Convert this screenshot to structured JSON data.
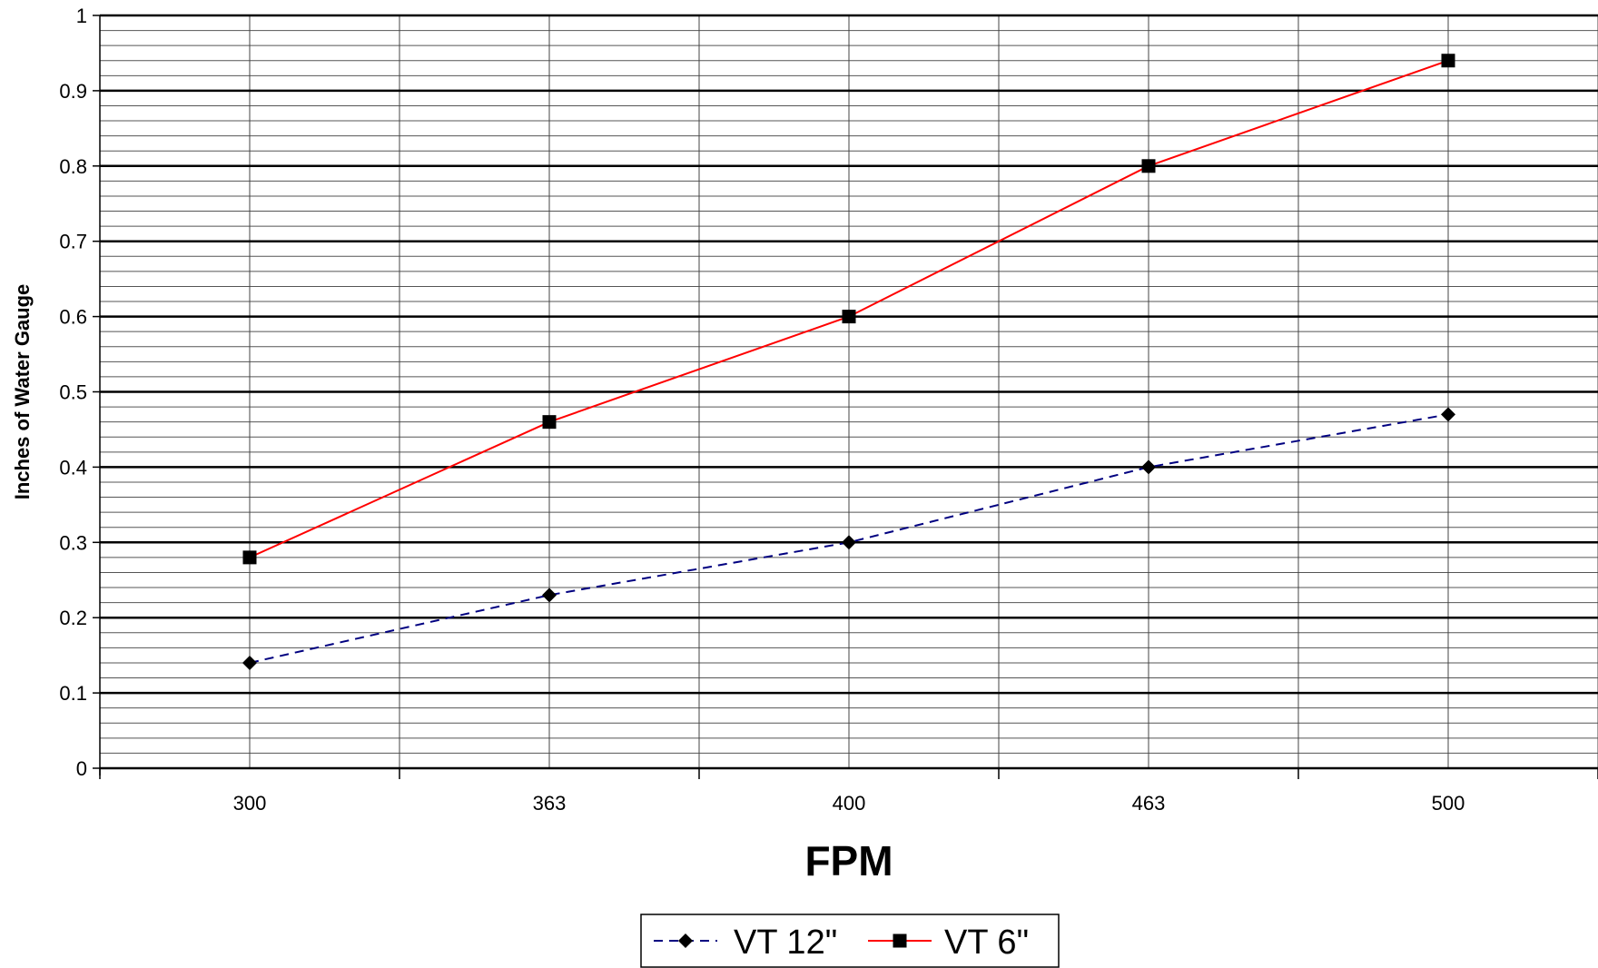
{
  "chart_data": {
    "type": "line",
    "title": "",
    "xlabel": "FPM",
    "ylabel": "Inches of Water Gauge",
    "categories": [
      "300",
      "363",
      "400",
      "463",
      "500"
    ],
    "ylim": [
      0,
      1
    ],
    "y_major_step": 0.1,
    "y_minor_step": 0.02,
    "yticks": [
      "0",
      "0.1",
      "0.2",
      "0.3",
      "0.4",
      "0.5",
      "0.6",
      "0.7",
      "0.8",
      "0.9",
      "1"
    ],
    "grid": true,
    "legend_position": "bottom",
    "series": [
      {
        "name": "VT 12\"",
        "values": [
          0.14,
          0.23,
          0.3,
          0.4,
          0.47
        ],
        "color": "#000080",
        "line_style": "dashed",
        "marker": "diamond",
        "marker_color": "#000000"
      },
      {
        "name": "VT 6\"",
        "values": [
          0.28,
          0.46,
          0.6,
          0.8,
          0.94
        ],
        "color": "#ff0000",
        "line_style": "solid",
        "marker": "square",
        "marker_color": "#000000"
      }
    ]
  }
}
